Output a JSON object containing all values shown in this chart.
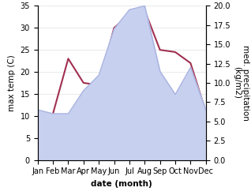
{
  "months": [
    "Jan",
    "Feb",
    "Mar",
    "Apr",
    "May",
    "Jun",
    "Jul",
    "Aug",
    "Sep",
    "Oct",
    "Nov",
    "Dec"
  ],
  "temperature": [
    5.5,
    10.5,
    23.0,
    17.5,
    17.0,
    30.0,
    33.0,
    34.0,
    25.0,
    24.5,
    22.0,
    11.0
  ],
  "precipitation": [
    6.5,
    6.0,
    6.0,
    9.0,
    11.0,
    17.0,
    19.5,
    20.0,
    11.5,
    8.5,
    12.0,
    6.5
  ],
  "temp_color": "#a03050",
  "precip_color": "#aab4e0",
  "precip_fill_color": "#c8d0f0",
  "temp_ylim": [
    0,
    35
  ],
  "precip_ylim": [
    0,
    20
  ],
  "xlabel": "date (month)",
  "ylabel_left": "max temp (C)",
  "ylabel_right": "med. precipitation\n(kg/m2)",
  "label_fontsize": 7.5,
  "tick_fontsize": 7.0
}
